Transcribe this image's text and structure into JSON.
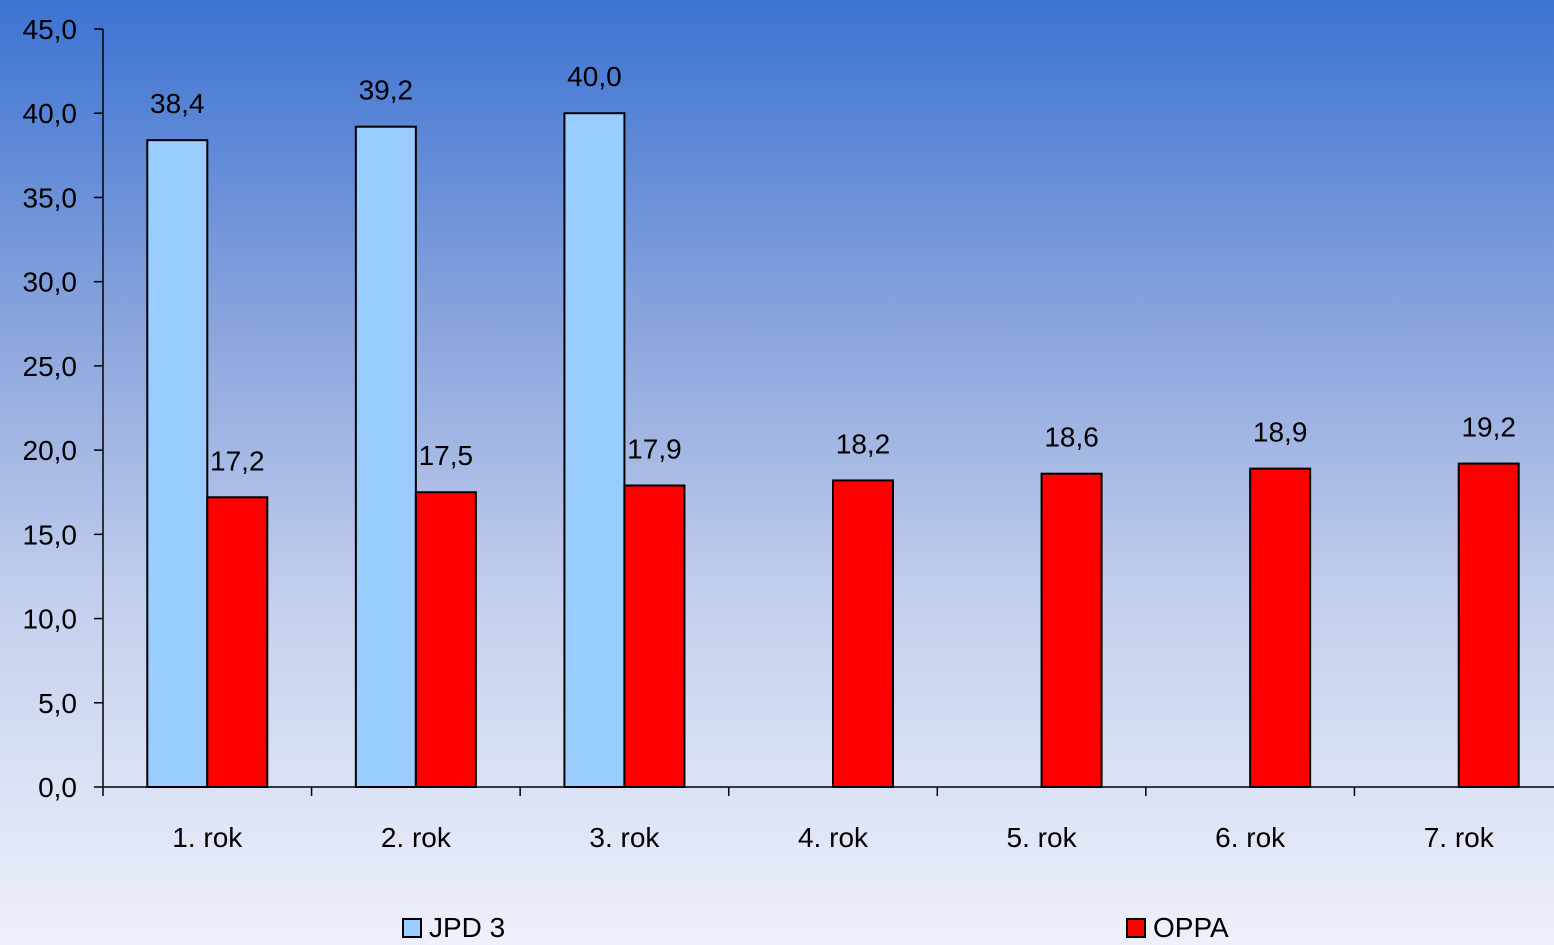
{
  "chart_data": {
    "type": "bar",
    "categories": [
      "1. rok",
      "2. rok",
      "3. rok",
      "4. rok",
      "5. rok",
      "6. rok",
      "7. rok"
    ],
    "series": [
      {
        "name": "JPD 3",
        "color": "#99ccff",
        "values": [
          38.4,
          39.2,
          40.0,
          null,
          null,
          null,
          null
        ],
        "labels": [
          "38,4",
          "39,2",
          "40,0",
          null,
          null,
          null,
          null
        ]
      },
      {
        "name": "OPPA",
        "color": "#ff0000",
        "values": [
          17.2,
          17.5,
          17.9,
          18.2,
          18.6,
          18.9,
          19.2
        ],
        "labels": [
          "17,2",
          "17,5",
          "17,9",
          "18,2",
          "18,6",
          "18,9",
          "19,2"
        ]
      }
    ],
    "ylim": [
      0,
      45
    ],
    "yticks": [
      0,
      5,
      10,
      15,
      20,
      25,
      30,
      35,
      40,
      45
    ],
    "ytick_labels": [
      "0,0",
      "5,0",
      "10,0",
      "15,0",
      "20,0",
      "25,0",
      "30,0",
      "35,0",
      "40,0",
      "45,0"
    ],
    "grid": false,
    "legend_position": "bottom"
  }
}
